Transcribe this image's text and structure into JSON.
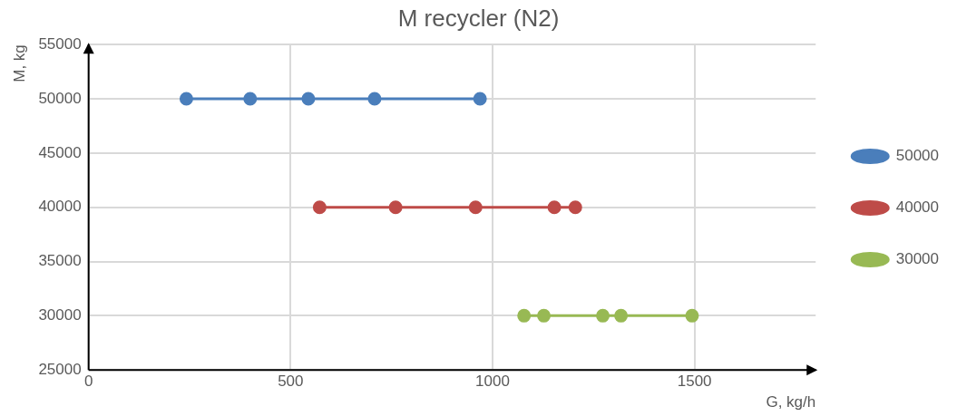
{
  "chart_data": {
    "type": "line",
    "title": "M recycler (N2)",
    "xlabel": "G, kg/h",
    "ylabel": "M, kg",
    "xlim": [
      0,
      1800
    ],
    "xticks": [
      0,
      500,
      1000,
      1500
    ],
    "ylim": [
      25000,
      55000
    ],
    "yticks": [
      25000,
      30000,
      35000,
      40000,
      45000,
      50000,
      55000
    ],
    "grid": true,
    "legend": "right",
    "marker": "circle",
    "line_style": "solid",
    "series": [
      {
        "name": "50000",
        "color": "#4a7ebb",
        "x": [
          242,
          400,
          544,
          708,
          969
        ],
        "values": [
          50000,
          50000,
          50000,
          50000,
          50000
        ]
      },
      {
        "name": "40000",
        "color": "#be4b48",
        "x": [
          572,
          760,
          958,
          1153,
          1205
        ],
        "values": [
          40000,
          40000,
          40000,
          40000,
          40000
        ]
      },
      {
        "name": "30000",
        "color": "#98b954",
        "x": [
          1078,
          1127,
          1273,
          1318,
          1494
        ],
        "values": [
          30000,
          30000,
          30000,
          30000,
          30000
        ]
      }
    ]
  }
}
